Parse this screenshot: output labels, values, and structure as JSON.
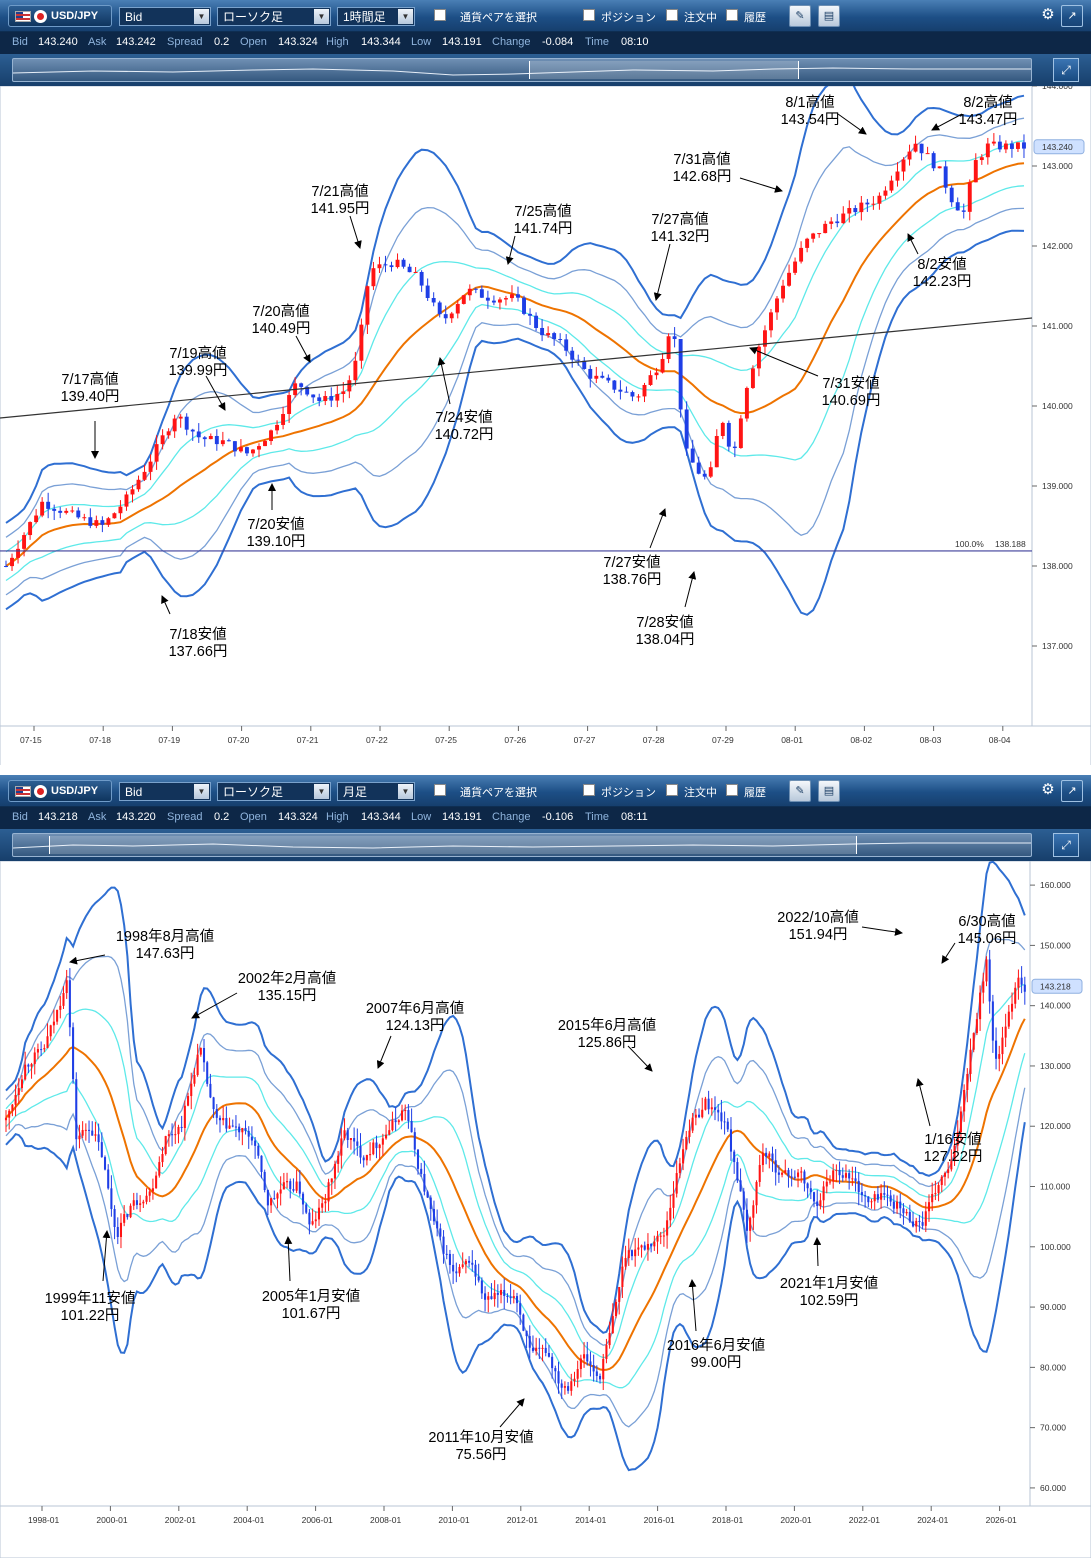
{
  "colors": {
    "up": "#ff1414",
    "down": "#1e3ee6",
    "ma": "#ee7300",
    "band_inner": "#5ee9e9",
    "band_mid": "#7aa0d6",
    "band_outer": "#2f6fd2",
    "trendline": "#333333",
    "level_line": "#3d3f9a",
    "price_badge": "#cfe1ff"
  },
  "panels": [
    {
      "toolbar": {
        "pair": "USD/JPY",
        "price_type": "Bid",
        "chart_type": "ローソク足",
        "timeframe": "1時間足",
        "pair_select": "通貨ペアを選択",
        "position": "ポジション",
        "orders": "注文中",
        "history": "履歴"
      },
      "info": {
        "bid_label": "Bid",
        "bid": "143.240",
        "ask_label": "Ask",
        "ask": "143.242",
        "spread_label": "Spread",
        "spread": "0.2",
        "open_label": "Open",
        "open": "143.324",
        "high_label": "High",
        "high": "143.344",
        "low_label": "Low",
        "low": "143.191",
        "change_label": "Change",
        "change": "-0.084",
        "time_label": "Time",
        "time": "08:10"
      },
      "chart_data": {
        "type": "candlestick",
        "y_range": [
          136.0,
          144.0
        ],
        "y_ticks": [
          "137.000",
          "138.000",
          "139.000",
          "140.000",
          "141.000",
          "142.000",
          "143.000",
          "144.000"
        ],
        "x_ticks": [
          "07-15",
          "07-18",
          "07-19",
          "07-20",
          "07-21",
          "07-22",
          "07-25",
          "07-26",
          "07-27",
          "07-28",
          "07-29",
          "08-01",
          "08-02",
          "08-03",
          "08-04"
        ],
        "current_price": "143.240",
        "level": {
          "label": "100.0%",
          "value": "138.188"
        },
        "close_path": [
          [
            0,
            138.0
          ],
          [
            6,
            138.8
          ],
          [
            12,
            138.6
          ],
          [
            16,
            138.5
          ],
          [
            20,
            138.85
          ],
          [
            24,
            139.35
          ],
          [
            28,
            139.9
          ],
          [
            32,
            139.6
          ],
          [
            36,
            139.55
          ],
          [
            40,
            139.4
          ],
          [
            44,
            139.7
          ],
          [
            48,
            140.3
          ],
          [
            52,
            140.05
          ],
          [
            56,
            140.2
          ],
          [
            58,
            140.6
          ],
          [
            60,
            141.7
          ],
          [
            64,
            141.8
          ],
          [
            68,
            141.6
          ],
          [
            72,
            141.05
          ],
          [
            76,
            141.45
          ],
          [
            80,
            141.35
          ],
          [
            84,
            141.35
          ],
          [
            88,
            140.95
          ],
          [
            92,
            140.75
          ],
          [
            96,
            140.4
          ],
          [
            100,
            140.25
          ],
          [
            104,
            140.1
          ],
          [
            108,
            140.55
          ],
          [
            110,
            141.1
          ],
          [
            112,
            139.45
          ],
          [
            114,
            139.2
          ],
          [
            116,
            139.05
          ],
          [
            118,
            139.9
          ],
          [
            120,
            139.35
          ],
          [
            122,
            140.2
          ],
          [
            124,
            140.7
          ],
          [
            128,
            141.5
          ],
          [
            132,
            142.05
          ],
          [
            136,
            142.3
          ],
          [
            140,
            142.45
          ],
          [
            144,
            142.6
          ],
          [
            148,
            143.1
          ],
          [
            150,
            143.3
          ],
          [
            154,
            142.95
          ],
          [
            156,
            142.6
          ],
          [
            158,
            142.4
          ],
          [
            160,
            143.05
          ],
          [
            162,
            143.25
          ],
          [
            168,
            143.24
          ]
        ],
        "annotations": [
          {
            "date": "7/17高値",
            "price": "139.40円"
          },
          {
            "date": "7/18安値",
            "price": "137.66円"
          },
          {
            "date": "7/19高値",
            "price": "139.99円"
          },
          {
            "date": "7/20高値",
            "price": "140.49円"
          },
          {
            "date": "7/20安値",
            "price": "139.10円"
          },
          {
            "date": "7/21高値",
            "price": "141.95円"
          },
          {
            "date": "7/24安値",
            "price": "140.72円"
          },
          {
            "date": "7/25高値",
            "price": "141.74円"
          },
          {
            "date": "7/27高値",
            "price": "141.32円"
          },
          {
            "date": "7/27安値",
            "price": "138.76円"
          },
          {
            "date": "7/28安値",
            "price": "138.04円"
          },
          {
            "date": "7/31高値",
            "price": "142.68円"
          },
          {
            "date": "7/31安値",
            "price": "140.69円"
          },
          {
            "date": "8/1高値",
            "price": "143.54円"
          },
          {
            "date": "8/2高値",
            "price": "143.47円"
          },
          {
            "date": "8/2安値",
            "price": "142.23円"
          }
        ]
      }
    },
    {
      "toolbar": {
        "pair": "USD/JPY",
        "price_type": "Bid",
        "chart_type": "ローソク足",
        "timeframe": "月足",
        "pair_select": "通貨ペアを選択",
        "position": "ポジション",
        "orders": "注文中",
        "history": "履歴"
      },
      "info": {
        "bid_label": "Bid",
        "bid": "143.218",
        "ask_label": "Ask",
        "ask": "143.220",
        "spread_label": "Spread",
        "spread": "0.2",
        "open_label": "Open",
        "open": "143.324",
        "high_label": "High",
        "high": "143.344",
        "low_label": "Low",
        "low": "143.191",
        "change_label": "Change",
        "change": "-0.106",
        "time_label": "Time",
        "time": "08:11"
      },
      "chart_data": {
        "type": "candlestick",
        "y_range": [
          57.0,
          164.0
        ],
        "y_ticks": [
          "60.000",
          "70.000",
          "80.000",
          "90.000",
          "100.000",
          "110.000",
          "120.000",
          "130.000",
          "140.000",
          "150.000",
          "160.000"
        ],
        "x_ticks": [
          "1998-01",
          "2000-01",
          "2002-01",
          "2004-01",
          "2006-01",
          "2008-01",
          "2010-01",
          "2012-01",
          "2014-01",
          "2016-01",
          "2018-01",
          "2020-01",
          "2022-01",
          "2024-01",
          "2026-01"
        ],
        "current_price": "143.218",
        "close_path": [
          [
            1997.0,
            121
          ],
          [
            1997.5,
            130
          ],
          [
            1998.0,
            133
          ],
          [
            1998.4,
            140
          ],
          [
            1998.6,
            145
          ],
          [
            1998.85,
            118
          ],
          [
            1999.2,
            120
          ],
          [
            1999.5,
            116
          ],
          [
            1999.9,
            102
          ],
          [
            2000.3,
            107
          ],
          [
            2000.8,
            109
          ],
          [
            2001.2,
            118
          ],
          [
            2001.6,
            120
          ],
          [
            2002.1,
            133
          ],
          [
            2002.5,
            121
          ],
          [
            2002.9,
            120
          ],
          [
            2003.5,
            118
          ],
          [
            2003.9,
            107
          ],
          [
            2004.3,
            110
          ],
          [
            2004.7,
            110
          ],
          [
            2005.0,
            103
          ],
          [
            2005.4,
            108
          ],
          [
            2005.9,
            119
          ],
          [
            2006.4,
            115
          ],
          [
            2006.9,
            118
          ],
          [
            2007.5,
            123
          ],
          [
            2007.9,
            112
          ],
          [
            2008.3,
            103
          ],
          [
            2008.8,
            95
          ],
          [
            2009.2,
            98
          ],
          [
            2009.6,
            91
          ],
          [
            2010.0,
            92
          ],
          [
            2010.4,
            92
          ],
          [
            2010.8,
            82
          ],
          [
            2011.2,
            83
          ],
          [
            2011.6,
            77
          ],
          [
            2011.8,
            77
          ],
          [
            2012.2,
            82
          ],
          [
            2012.6,
            78
          ],
          [
            2012.9,
            86
          ],
          [
            2013.3,
            99
          ],
          [
            2013.8,
            100
          ],
          [
            2014.3,
            102
          ],
          [
            2014.9,
            119
          ],
          [
            2015.4,
            124
          ],
          [
            2015.9,
            121
          ],
          [
            2016.2,
            113
          ],
          [
            2016.5,
            102
          ],
          [
            2016.9,
            116
          ],
          [
            2017.4,
            112
          ],
          [
            2017.9,
            112
          ],
          [
            2018.3,
            107
          ],
          [
            2018.8,
            113
          ],
          [
            2019.3,
            111
          ],
          [
            2019.7,
            107
          ],
          [
            2020.0,
            109
          ],
          [
            2020.4,
            107
          ],
          [
            2020.9,
            104
          ],
          [
            2021.1,
            104
          ],
          [
            2021.5,
            110
          ],
          [
            2021.9,
            114
          ],
          [
            2022.3,
            130
          ],
          [
            2022.8,
            148
          ],
          [
            2023.0,
            130
          ],
          [
            2023.3,
            136
          ],
          [
            2023.6,
            145
          ],
          [
            2023.8,
            143
          ]
        ],
        "annotations": [
          {
            "date": "1998年8月高値",
            "price": "147.63円"
          },
          {
            "date": "1999年11安値",
            "price": "101.22円"
          },
          {
            "date": "2002年2月高値",
            "price": "135.15円"
          },
          {
            "date": "2005年1月安値",
            "price": "101.67円"
          },
          {
            "date": "2007年6月高値",
            "price": "124.13円"
          },
          {
            "date": "2011年10月安値",
            "price": "75.56円"
          },
          {
            "date": "2015年6月高値",
            "price": "125.86円"
          },
          {
            "date": "2016年6月安値",
            "price": "99.00円"
          },
          {
            "date": "2021年1月安値",
            "price": "102.59円"
          },
          {
            "date": "2022/10高値",
            "price": "151.94円"
          },
          {
            "date": "6/30高値",
            "price": "145.06円"
          },
          {
            "date": "1/16安値",
            "price": "127.22円"
          }
        ]
      }
    }
  ]
}
